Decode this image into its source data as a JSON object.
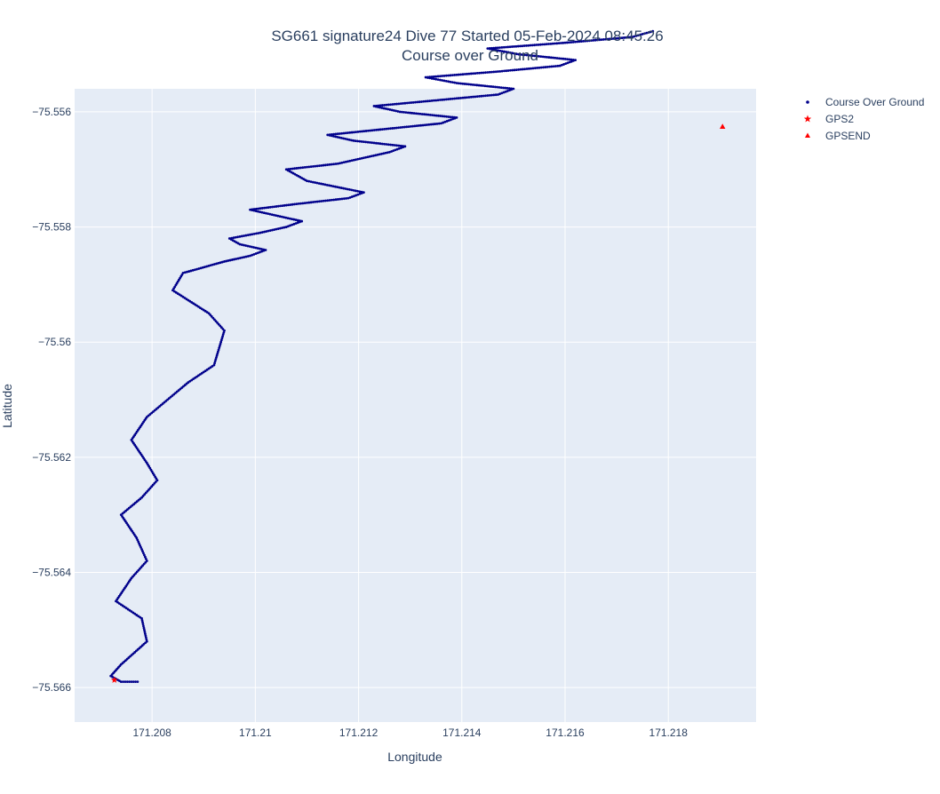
{
  "chart_data": {
    "type": "scatter",
    "title": "SG661 signature24 Dive 77 Started 05-Feb-2024 08:45:26",
    "subtitle": "Course over Ground",
    "xlabel": "Longitude",
    "ylabel": "Latitude",
    "xlim": [
      171.2065,
      171.2197
    ],
    "ylim": [
      -75.5666,
      -75.5556
    ],
    "grid": true,
    "legend_position": "top-right",
    "x_ticks": [
      171.208,
      171.21,
      171.212,
      171.214,
      171.216,
      171.218
    ],
    "x_tick_labels": [
      "171.208",
      "171.21",
      "171.212",
      "171.214",
      "171.216",
      "171.218"
    ],
    "y_ticks": [
      -75.556,
      -75.558,
      -75.56,
      -75.562,
      -75.564,
      -75.566
    ],
    "y_tick_labels": [
      "−75.556",
      "−75.558",
      "−75.56",
      "−75.562",
      "−75.564",
      "−75.566"
    ],
    "series": [
      {
        "name": "Course Over Ground",
        "marker": "dot",
        "color": "#00008b",
        "x": [
          171.20772,
          171.2074,
          171.2072,
          171.2074,
          171.2079,
          171.2078,
          171.2073,
          171.2076,
          171.2079,
          171.2077,
          171.2074,
          171.2078,
          171.2081,
          171.2079,
          171.2076,
          171.2079,
          171.2083,
          171.2087,
          171.2092,
          171.2093,
          171.2094,
          171.2091,
          171.2084,
          171.2086,
          171.2094,
          171.2099,
          171.2102,
          171.2097,
          171.2095,
          171.2101,
          171.2106,
          171.2109,
          171.2104,
          171.2099,
          171.2108,
          171.2118,
          171.2121,
          171.211,
          171.2106,
          171.2116,
          171.2126,
          171.2129,
          171.2119,
          171.2114,
          171.2125,
          171.2136,
          171.2139,
          171.2128,
          171.2123,
          171.2135,
          171.2147,
          171.215,
          171.2139,
          171.2133,
          171.2147,
          171.2159,
          171.2162,
          171.2151,
          171.2145,
          171.216,
          171.2173,
          171.2177
        ],
        "y": [
          -75.5659,
          -75.5659,
          -75.5658,
          -75.5656,
          -75.5652,
          -75.5648,
          -75.5645,
          -75.5641,
          -75.5638,
          -75.5634,
          -75.563,
          -75.5627,
          -75.5624,
          -75.5621,
          -75.5617,
          -75.5613,
          -75.561,
          -75.5607,
          -75.5604,
          -75.5601,
          -75.5598,
          -75.5595,
          -75.5591,
          -75.5588,
          -75.5586,
          -75.5585,
          -75.5584,
          -75.5583,
          -75.5582,
          -75.5581,
          -75.558,
          -75.5579,
          -75.5578,
          -75.5577,
          -75.5576,
          -75.5575,
          -75.5574,
          -75.5572,
          -75.557,
          -75.5569,
          -75.5567,
          -75.5566,
          -75.5565,
          -75.5564,
          -75.5563,
          -75.5562,
          -75.5561,
          -75.556,
          -75.5559,
          -75.5558,
          -75.5557,
          -75.5556,
          -75.5555,
          -75.5554,
          -75.5553,
          -75.5552,
          -75.5551,
          -75.555,
          -75.5549,
          -75.5548,
          -75.5547,
          -75.5546
        ]
      },
      {
        "name": "GPS2",
        "marker": "star",
        "color": "#ff0000",
        "x": [
          171.20727
        ],
        "y": [
          -75.56587
        ]
      },
      {
        "name": "GPSEND",
        "marker": "triangle-up",
        "color": "#ff0000",
        "x": [
          171.21905
        ],
        "y": [
          -75.55626
        ]
      }
    ]
  }
}
